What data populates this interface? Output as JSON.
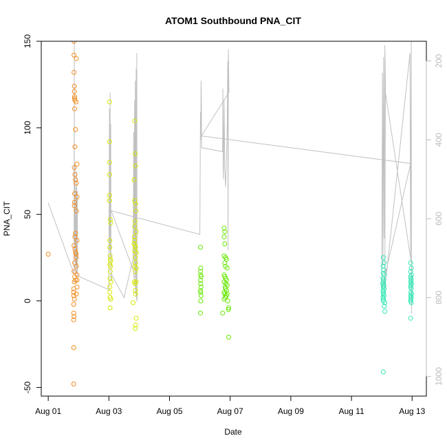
{
  "chart_data": {
    "type": "scatter",
    "title": "ATOM1 Southbound PNA_CIT",
    "xlabel": "Date",
    "ylabel": "PNA_CIT",
    "x_ticks": [
      "Aug 01",
      "Aug 03",
      "Aug 05",
      "Aug 07",
      "Aug 09",
      "Aug 11",
      "Aug 13"
    ],
    "x_tick_values": [
      1,
      3,
      5,
      7,
      9,
      11,
      13
    ],
    "xlim": [
      0.77,
      13.47
    ],
    "ylim": [
      -55,
      150
    ],
    "y_ticks": [
      -50,
      0,
      50,
      100,
      150
    ],
    "y2_ticks": [
      200,
      400,
      600,
      800,
      1000
    ],
    "y2_range": [
      1050,
      150
    ],
    "y2_color": "#bbbbbb",
    "grid": false,
    "legend": "none",
    "point_style": "open-circle",
    "series": [
      {
        "color": "#f28c1f",
        "points": [
          [
            1.0,
            27
          ],
          [
            1.85,
            150
          ],
          [
            1.85,
            142
          ],
          [
            1.85,
            132
          ],
          [
            1.86,
            124
          ],
          [
            1.86,
            121
          ],
          [
            1.87,
            118
          ],
          [
            1.87,
            117
          ],
          [
            1.88,
            116
          ],
          [
            1.87,
            111
          ],
          [
            1.9,
            99
          ],
          [
            1.88,
            89
          ],
          [
            1.86,
            77
          ],
          [
            1.88,
            73
          ],
          [
            1.9,
            70
          ],
          [
            1.92,
            68
          ],
          [
            1.87,
            62
          ],
          [
            1.87,
            57
          ],
          [
            1.86,
            55
          ],
          [
            1.9,
            39
          ],
          [
            1.88,
            37
          ],
          [
            1.85,
            32
          ],
          [
            1.88,
            30
          ],
          [
            1.9,
            28
          ],
          [
            1.92,
            27
          ],
          [
            1.87,
            22
          ],
          [
            1.85,
            17
          ],
          [
            1.87,
            14
          ],
          [
            1.9,
            12
          ],
          [
            1.86,
            11
          ],
          [
            1.84,
            7
          ],
          [
            1.84,
            5
          ],
          [
            1.84,
            3
          ],
          [
            1.86,
            1
          ],
          [
            1.84,
            -2
          ],
          [
            1.84,
            -7
          ],
          [
            1.85,
            -9
          ],
          [
            1.84,
            -11
          ],
          [
            1.84,
            -27
          ],
          [
            1.84,
            -48
          ],
          [
            1.93,
            140
          ],
          [
            1.92,
            115
          ],
          [
            1.95,
            79
          ],
          [
            1.95,
            60
          ],
          [
            1.93,
            52
          ],
          [
            1.95,
            35
          ],
          [
            1.93,
            20
          ],
          [
            1.95,
            15
          ],
          [
            1.95,
            8
          ],
          [
            1.93,
            4
          ],
          [
            1.92,
            25
          ],
          [
            1.95,
            12
          ]
        ]
      },
      {
        "color": "#d7e800",
        "points": [
          [
            3.02,
            115
          ],
          [
            3.02,
            92
          ],
          [
            3.02,
            80
          ],
          [
            3.02,
            73
          ],
          [
            3.02,
            61
          ],
          [
            3.02,
            58
          ],
          [
            3.05,
            47
          ],
          [
            3.06,
            45
          ],
          [
            3.03,
            35
          ],
          [
            3.03,
            31
          ],
          [
            3.04,
            26
          ],
          [
            3.05,
            24
          ],
          [
            3.06,
            23
          ],
          [
            3.03,
            21
          ],
          [
            3.06,
            20
          ],
          [
            3.05,
            17
          ],
          [
            3.04,
            13
          ],
          [
            3.07,
            11
          ],
          [
            3.03,
            8
          ],
          [
            3.03,
            5
          ],
          [
            3.04,
            2
          ],
          [
            3.06,
            1
          ],
          [
            3.04,
            -4
          ],
          [
            3.85,
            104
          ],
          [
            3.87,
            85
          ],
          [
            3.88,
            78
          ],
          [
            3.83,
            70
          ],
          [
            3.85,
            58
          ],
          [
            3.88,
            56
          ],
          [
            3.89,
            52
          ],
          [
            3.86,
            46
          ],
          [
            3.85,
            43
          ],
          [
            3.9,
            40
          ],
          [
            3.84,
            37
          ],
          [
            3.85,
            35
          ],
          [
            3.83,
            33
          ],
          [
            3.86,
            32
          ],
          [
            3.88,
            31
          ],
          [
            3.85,
            29
          ],
          [
            3.9,
            28
          ],
          [
            3.87,
            25
          ],
          [
            3.88,
            22
          ],
          [
            3.85,
            20
          ],
          [
            3.9,
            19
          ],
          [
            3.87,
            17
          ],
          [
            3.84,
            11
          ],
          [
            3.86,
            10
          ],
          [
            3.9,
            11
          ],
          [
            3.87,
            6
          ],
          [
            3.88,
            4
          ],
          [
            3.8,
            -1
          ],
          [
            3.9,
            -10
          ],
          [
            3.88,
            -14
          ],
          [
            3.87,
            -16
          ]
        ]
      },
      {
        "color": "#66e800",
        "points": [
          [
            6.02,
            31
          ],
          [
            6.03,
            19
          ],
          [
            6.02,
            17
          ],
          [
            6.03,
            15
          ],
          [
            6.04,
            14
          ],
          [
            6.02,
            12
          ],
          [
            6.03,
            10
          ],
          [
            6.04,
            8
          ],
          [
            6.02,
            6
          ],
          [
            6.03,
            5
          ],
          [
            6.04,
            3
          ],
          [
            6.03,
            0
          ],
          [
            6.02,
            -7
          ],
          [
            6.8,
            42
          ],
          [
            6.82,
            40
          ],
          [
            6.8,
            37
          ],
          [
            6.82,
            33
          ],
          [
            6.8,
            26
          ],
          [
            6.85,
            25
          ],
          [
            6.88,
            24
          ],
          [
            6.82,
            22
          ],
          [
            6.84,
            20
          ],
          [
            6.9,
            19
          ],
          [
            6.8,
            15
          ],
          [
            6.82,
            14
          ],
          [
            6.85,
            13
          ],
          [
            6.88,
            12
          ],
          [
            6.8,
            11
          ],
          [
            6.86,
            10
          ],
          [
            6.9,
            9
          ],
          [
            6.83,
            8
          ],
          [
            6.85,
            7
          ],
          [
            6.88,
            6
          ],
          [
            6.8,
            5
          ],
          [
            6.82,
            4
          ],
          [
            6.9,
            4
          ],
          [
            6.87,
            3
          ],
          [
            6.84,
            2
          ],
          [
            6.8,
            1
          ],
          [
            6.92,
            0
          ],
          [
            6.95,
            -4
          ],
          [
            6.94,
            -5
          ],
          [
            6.75,
            -7
          ],
          [
            6.95,
            -21
          ]
        ]
      },
      {
        "color": "#2ee8b4",
        "points": [
          [
            12.05,
            25
          ],
          [
            12.08,
            22
          ],
          [
            12.04,
            20
          ],
          [
            12.06,
            18
          ],
          [
            12.05,
            16
          ],
          [
            12.08,
            15
          ],
          [
            12.04,
            13
          ],
          [
            12.06,
            12
          ],
          [
            12.05,
            11
          ],
          [
            12.03,
            10
          ],
          [
            12.07,
            9
          ],
          [
            12.05,
            8
          ],
          [
            12.08,
            7
          ],
          [
            12.04,
            6
          ],
          [
            12.06,
            5
          ],
          [
            12.05,
            4
          ],
          [
            12.07,
            3
          ],
          [
            12.04,
            2
          ],
          [
            12.06,
            1
          ],
          [
            12.05,
            0
          ],
          [
            12.1,
            -1
          ],
          [
            12.08,
            -3
          ],
          [
            12.1,
            -6
          ],
          [
            12.05,
            -41
          ],
          [
            12.95,
            22
          ],
          [
            12.97,
            19
          ],
          [
            12.95,
            17
          ],
          [
            12.98,
            15
          ],
          [
            12.95,
            14
          ],
          [
            12.96,
            13
          ],
          [
            12.97,
            12
          ],
          [
            12.95,
            11
          ],
          [
            12.98,
            10
          ],
          [
            12.96,
            9
          ],
          [
            12.95,
            8
          ],
          [
            12.97,
            7
          ],
          [
            12.96,
            5
          ],
          [
            12.98,
            4
          ],
          [
            12.95,
            3
          ],
          [
            12.97,
            2
          ],
          [
            12.96,
            1
          ],
          [
            12.95,
            0
          ],
          [
            12.97,
            -1
          ],
          [
            12.95,
            -10
          ]
        ]
      }
    ],
    "line_series": {
      "color": "#c0c0c0",
      "axis": "right",
      "connectors": [
        [
          1.0,
          560
        ],
        [
          1.85,
          740
        ],
        [
          1.86,
          150
        ],
        [
          1.86,
          700
        ],
        [
          1.88,
          460
        ],
        [
          1.9,
          735
        ],
        [
          1.92,
          520
        ],
        [
          1.92,
          720
        ],
        [
          1.94,
          480
        ],
        [
          1.94,
          740
        ],
        [
          1.96,
          530
        ],
        [
          1.96,
          745
        ],
        [
          3.0,
          780
        ],
        [
          3.02,
          320
        ],
        [
          3.03,
          680
        ],
        [
          3.04,
          280
        ],
        [
          3.05,
          700
        ],
        [
          3.06,
          360
        ],
        [
          3.07,
          760
        ],
        [
          3.08,
          740
        ],
        [
          3.5,
          800
        ],
        [
          3.8,
          700
        ],
        [
          3.82,
          380
        ],
        [
          3.83,
          720
        ],
        [
          3.85,
          300
        ],
        [
          3.86,
          750
        ],
        [
          3.87,
          250
        ],
        [
          3.88,
          790
        ],
        [
          3.9,
          220
        ],
        [
          3.91,
          800
        ],
        [
          3.92,
          180
        ],
        [
          3.93,
          810
        ],
        [
          3.8,
          730
        ],
        [
          3.08,
          580
        ],
        [
          6.0,
          640
        ],
        [
          6.02,
          330
        ],
        [
          6.03,
          400
        ],
        [
          6.04,
          250
        ],
        [
          6.05,
          300
        ],
        [
          6.06,
          420
        ],
        [
          6.75,
          430
        ],
        [
          6.76,
          270
        ],
        [
          6.77,
          470
        ],
        [
          6.78,
          500
        ],
        [
          6.8,
          300
        ],
        [
          6.82,
          470
        ],
        [
          6.85,
          520
        ],
        [
          6.9,
          380
        ],
        [
          6.92,
          200
        ],
        [
          6.93,
          680
        ],
        [
          6.94,
          170
        ],
        [
          6.96,
          280
        ],
        [
          6.05,
          390
        ],
        [
          12.95,
          460
        ],
        [
          12.0,
          780
        ],
        [
          12.02,
          230
        ],
        [
          12.04,
          720
        ],
        [
          12.06,
          190
        ],
        [
          12.08,
          650
        ],
        [
          12.1,
          160
        ],
        [
          12.12,
          260
        ],
        [
          12.1,
          780
        ],
        [
          12.93,
          180
        ],
        [
          12.95,
          700
        ],
        [
          12.97,
          150
        ],
        [
          12.98,
          840
        ],
        [
          12.99,
          720
        ],
        [
          12.1,
          270
        ]
      ]
    }
  }
}
